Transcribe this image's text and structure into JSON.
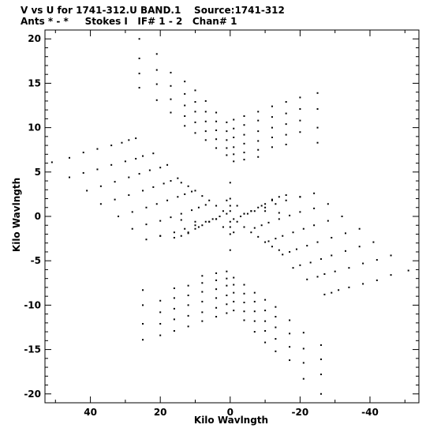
{
  "header": {
    "line1": "V vs U for 1741-312.U BAND.1    Source:1741-312",
    "line2": "Ants * - *     Stokes I   IF# 1 - 2   Chan# 1"
  },
  "chart_data": {
    "type": "scatter",
    "title": "V vs U for 1741-312.U BAND.1",
    "xlabel": "Kilo Wavlngth",
    "ylabel": "Kilo Wavlngth",
    "xlim": [
      53,
      -54
    ],
    "ylim": [
      -21,
      21
    ],
    "x_reversed": true,
    "xticks": [
      40,
      20,
      0,
      -20,
      -40
    ],
    "yticks": [
      20,
      15,
      10,
      5,
      0,
      -5,
      -10,
      -15,
      -20
    ],
    "xtick_labels": [
      "40",
      "20",
      "0",
      "-20",
      "-40"
    ],
    "ytick_labels": [
      "20",
      "15",
      "10",
      "5",
      "0",
      "-5",
      "-10",
      "-15",
      "-20"
    ],
    "marker_color": "#000000",
    "grid": false,
    "series": [
      {
        "points": [
          [
            51,
            6.1
          ],
          [
            46,
            6.6
          ],
          [
            42,
            7.2
          ],
          [
            38,
            7.6
          ],
          [
            34,
            8.0
          ],
          [
            31,
            8.3
          ],
          [
            29,
            8.6
          ],
          [
            27,
            8.8
          ],
          [
            46,
            4.4
          ],
          [
            42,
            4.9
          ],
          [
            38,
            5.3
          ],
          [
            34,
            5.8
          ],
          [
            30,
            6.2
          ],
          [
            27,
            6.5
          ],
          [
            25,
            6.8
          ],
          [
            22,
            7.1
          ],
          [
            41,
            2.9
          ],
          [
            37,
            3.4
          ],
          [
            33,
            3.9
          ],
          [
            29,
            4.4
          ],
          [
            26,
            4.8
          ],
          [
            23,
            5.2
          ],
          [
            20,
            5.5
          ],
          [
            18,
            5.8
          ],
          [
            37,
            1.4
          ],
          [
            33,
            1.9
          ],
          [
            29,
            2.4
          ],
          [
            25,
            2.9
          ],
          [
            22,
            3.3
          ],
          [
            19,
            3.7
          ],
          [
            17,
            4.0
          ],
          [
            15,
            4.3
          ],
          [
            32,
            0.0
          ],
          [
            28,
            0.5
          ],
          [
            24,
            1.0
          ],
          [
            21,
            1.4
          ],
          [
            18,
            1.8
          ],
          [
            15,
            2.2
          ],
          [
            13,
            2.5
          ],
          [
            11,
            2.8
          ],
          [
            28,
            -1.4
          ],
          [
            24,
            -0.9
          ],
          [
            20,
            -0.5
          ],
          [
            17,
            -0.1
          ],
          [
            14,
            0.3
          ],
          [
            11,
            0.7
          ],
          [
            9,
            1.0
          ],
          [
            7,
            1.3
          ],
          [
            24,
            -2.6
          ],
          [
            20,
            -2.2
          ],
          [
            16,
            -1.8
          ],
          [
            13,
            -1.4
          ],
          [
            10,
            -1.0
          ],
          [
            7,
            -0.6
          ],
          [
            5,
            -0.3
          ],
          [
            3,
            0.0
          ],
          [
            20,
            -2.2
          ],
          [
            16,
            -2.4
          ],
          [
            12,
            -1.9
          ],
          [
            9,
            -1.2
          ],
          [
            6,
            -0.6
          ],
          [
            4,
            -0.3
          ],
          [
            -51,
            -6.1
          ],
          [
            -46,
            -6.6
          ],
          [
            -42,
            -7.2
          ],
          [
            -38,
            -7.6
          ],
          [
            -34,
            -8.0
          ],
          [
            -31,
            -8.3
          ],
          [
            -29,
            -8.6
          ],
          [
            -27,
            -8.8
          ],
          [
            -46,
            -4.4
          ],
          [
            -42,
            -4.9
          ],
          [
            -38,
            -5.3
          ],
          [
            -34,
            -5.8
          ],
          [
            -30,
            -6.2
          ],
          [
            -27,
            -6.5
          ],
          [
            -25,
            -6.8
          ],
          [
            -22,
            -7.1
          ],
          [
            -41,
            -2.9
          ],
          [
            -37,
            -3.4
          ],
          [
            -33,
            -3.9
          ],
          [
            -29,
            -4.4
          ],
          [
            -26,
            -4.8
          ],
          [
            -23,
            -5.2
          ],
          [
            -20,
            -5.5
          ],
          [
            -18,
            -5.8
          ],
          [
            -37,
            -1.4
          ],
          [
            -33,
            -1.9
          ],
          [
            -29,
            -2.4
          ],
          [
            -25,
            -2.9
          ],
          [
            -22,
            -3.3
          ],
          [
            -19,
            -3.7
          ],
          [
            -17,
            -4.0
          ],
          [
            -15,
            -4.3
          ],
          [
            -32,
            0.0
          ],
          [
            -28,
            -0.5
          ],
          [
            -24,
            -1.0
          ],
          [
            -21,
            -1.4
          ],
          [
            -18,
            -1.8
          ],
          [
            -15,
            -2.2
          ],
          [
            -13,
            -2.5
          ],
          [
            -11,
            -2.8
          ],
          [
            -28,
            1.4
          ],
          [
            -24,
            0.9
          ],
          [
            -20,
            0.5
          ],
          [
            -17,
            0.1
          ],
          [
            -14,
            -0.3
          ],
          [
            -11,
            -0.7
          ],
          [
            -9,
            -1.0
          ],
          [
            -7,
            -1.3
          ],
          [
            -24,
            2.6
          ],
          [
            -20,
            2.2
          ],
          [
            -16,
            1.8
          ],
          [
            -13,
            1.4
          ],
          [
            -10,
            1.0
          ],
          [
            -7,
            0.6
          ],
          [
            -5,
            0.3
          ],
          [
            -3,
            0.0
          ],
          [
            -20,
            2.2
          ],
          [
            -16,
            2.4
          ],
          [
            -12,
            1.9
          ],
          [
            -9,
            1.2
          ],
          [
            -6,
            0.6
          ],
          [
            -4,
            0.3
          ],
          [
            26,
            20.0
          ],
          [
            26,
            17.8
          ],
          [
            26,
            16.1
          ],
          [
            26,
            14.5
          ],
          [
            21,
            18.3
          ],
          [
            21,
            16.5
          ],
          [
            21,
            14.9
          ],
          [
            21,
            13.1
          ],
          [
            17,
            16.2
          ],
          [
            17,
            14.7
          ],
          [
            17,
            13.2
          ],
          [
            17,
            11.7
          ],
          [
            13,
            15.2
          ],
          [
            13,
            13.8
          ],
          [
            13,
            12.5
          ],
          [
            13,
            11.3
          ],
          [
            13,
            10.2
          ],
          [
            10,
            14.2
          ],
          [
            10,
            12.9
          ],
          [
            10,
            11.8
          ],
          [
            10,
            10.6
          ],
          [
            10,
            9.4
          ],
          [
            7,
            13.0
          ],
          [
            7,
            11.8
          ],
          [
            7,
            10.7
          ],
          [
            7,
            9.6
          ],
          [
            7,
            8.6
          ],
          [
            4,
            11.7
          ],
          [
            4,
            10.7
          ],
          [
            4,
            9.7
          ],
          [
            4,
            8.7
          ],
          [
            4,
            7.7
          ],
          [
            1,
            10.6
          ],
          [
            1,
            9.6
          ],
          [
            1,
            8.6
          ],
          [
            1,
            7.7
          ],
          [
            1,
            6.9
          ],
          [
            -1,
            10.9
          ],
          [
            -1,
            9.9
          ],
          [
            -1,
            8.9
          ],
          [
            -1,
            7.8
          ],
          [
            -1,
            7.0
          ],
          [
            -1,
            6.2
          ],
          [
            -4,
            11.3
          ],
          [
            -4,
            10.3
          ],
          [
            -4,
            9.2
          ],
          [
            -4,
            8.2
          ],
          [
            -4,
            7.2
          ],
          [
            -4,
            6.4
          ],
          [
            -8,
            11.8
          ],
          [
            -8,
            10.8
          ],
          [
            -8,
            9.6
          ],
          [
            -8,
            8.5
          ],
          [
            -8,
            7.5
          ],
          [
            -8,
            6.7
          ],
          [
            -12,
            12.4
          ],
          [
            -12,
            11.2
          ],
          [
            -12,
            10.0
          ],
          [
            -12,
            8.9
          ],
          [
            -12,
            7.8
          ],
          [
            -16,
            12.9
          ],
          [
            -16,
            11.6
          ],
          [
            -16,
            10.4
          ],
          [
            -16,
            9.2
          ],
          [
            -16,
            8.1
          ],
          [
            -20,
            13.4
          ],
          [
            -20,
            12.1
          ],
          [
            -20,
            10.8
          ],
          [
            -20,
            9.5
          ],
          [
            -25,
            13.9
          ],
          [
            -25,
            12.1
          ],
          [
            -25,
            10.0
          ],
          [
            -25,
            8.3
          ],
          [
            -26,
            -20.0
          ],
          [
            -26,
            -17.8
          ],
          [
            -26,
            -16.1
          ],
          [
            -26,
            -14.5
          ],
          [
            -21,
            -18.3
          ],
          [
            -21,
            -16.5
          ],
          [
            -21,
            -14.9
          ],
          [
            -21,
            -13.1
          ],
          [
            -17,
            -16.2
          ],
          [
            -17,
            -14.7
          ],
          [
            -17,
            -13.2
          ],
          [
            -17,
            -11.7
          ],
          [
            -13,
            -15.2
          ],
          [
            -13,
            -13.8
          ],
          [
            -13,
            -12.5
          ],
          [
            -13,
            -11.3
          ],
          [
            -13,
            -10.2
          ],
          [
            -10,
            -14.2
          ],
          [
            -10,
            -12.9
          ],
          [
            -10,
            -11.8
          ],
          [
            -10,
            -10.6
          ],
          [
            -10,
            -9.4
          ],
          [
            -7,
            -13.0
          ],
          [
            -7,
            -11.8
          ],
          [
            -7,
            -10.7
          ],
          [
            -7,
            -9.6
          ],
          [
            -7,
            -8.6
          ],
          [
            -4,
            -11.7
          ],
          [
            -4,
            -10.7
          ],
          [
            -4,
            -9.7
          ],
          [
            -4,
            -8.7
          ],
          [
            -4,
            -7.7
          ],
          [
            -1,
            -10.6
          ],
          [
            -1,
            -9.6
          ],
          [
            -1,
            -8.6
          ],
          [
            -1,
            -7.7
          ],
          [
            -1,
            -6.9
          ],
          [
            1,
            -10.9
          ],
          [
            1,
            -9.9
          ],
          [
            1,
            -8.9
          ],
          [
            1,
            -7.8
          ],
          [
            1,
            -7.0
          ],
          [
            1,
            -6.2
          ],
          [
            4,
            -11.3
          ],
          [
            4,
            -10.3
          ],
          [
            4,
            -9.2
          ],
          [
            4,
            -8.2
          ],
          [
            4,
            -7.2
          ],
          [
            4,
            -6.4
          ],
          [
            8,
            -11.8
          ],
          [
            8,
            -10.8
          ],
          [
            8,
            -9.6
          ],
          [
            8,
            -8.5
          ],
          [
            8,
            -7.5
          ],
          [
            8,
            -6.7
          ],
          [
            12,
            -12.4
          ],
          [
            12,
            -11.2
          ],
          [
            12,
            -10.0
          ],
          [
            12,
            -8.9
          ],
          [
            12,
            -7.8
          ],
          [
            16,
            -12.9
          ],
          [
            16,
            -11.6
          ],
          [
            16,
            -10.4
          ],
          [
            16,
            -9.2
          ],
          [
            16,
            -8.1
          ],
          [
            20,
            -13.4
          ],
          [
            20,
            -12.1
          ],
          [
            20,
            -10.8
          ],
          [
            20,
            -9.5
          ],
          [
            25,
            -13.9
          ],
          [
            25,
            -12.1
          ],
          [
            25,
            -10.0
          ],
          [
            25,
            -8.3
          ],
          [
            14,
            3.8
          ],
          [
            12,
            3.4
          ],
          [
            10,
            2.9
          ],
          [
            8,
            2.3
          ],
          [
            6,
            1.8
          ],
          [
            4,
            1.2
          ],
          [
            2,
            0.6
          ],
          [
            1,
            0.3
          ],
          [
            -14,
            -3.8
          ],
          [
            -12,
            -3.4
          ],
          [
            -10,
            -2.9
          ],
          [
            -8,
            -2.3
          ],
          [
            -6,
            -1.8
          ],
          [
            -4,
            -1.2
          ],
          [
            -2,
            -0.6
          ],
          [
            -1,
            -0.3
          ],
          [
            14,
            -2.2
          ],
          [
            12,
            -1.8
          ],
          [
            10,
            -1.4
          ],
          [
            8,
            -1.0
          ],
          [
            6,
            -0.6
          ],
          [
            4,
            -0.3
          ],
          [
            -14,
            2.2
          ],
          [
            -12,
            1.8
          ],
          [
            -10,
            1.4
          ],
          [
            -8,
            1.0
          ],
          [
            -6,
            0.6
          ],
          [
            -4,
            0.3
          ],
          [
            0,
            2.0
          ],
          [
            0,
            1.2
          ],
          [
            0,
            0.6
          ],
          [
            0,
            -0.6
          ],
          [
            0,
            -1.2
          ],
          [
            0,
            -2.0
          ],
          [
            0,
            3.8
          ],
          [
            0,
            -3.8
          ],
          [
            14,
            -0.4
          ],
          [
            10,
            -0.6
          ],
          [
            -10,
            0.6
          ],
          [
            -14,
            0.4
          ],
          [
            1,
            1.8
          ],
          [
            -1,
            -1.8
          ],
          [
            2,
            -1.2
          ],
          [
            -2,
            1.2
          ]
        ]
      }
    ]
  }
}
